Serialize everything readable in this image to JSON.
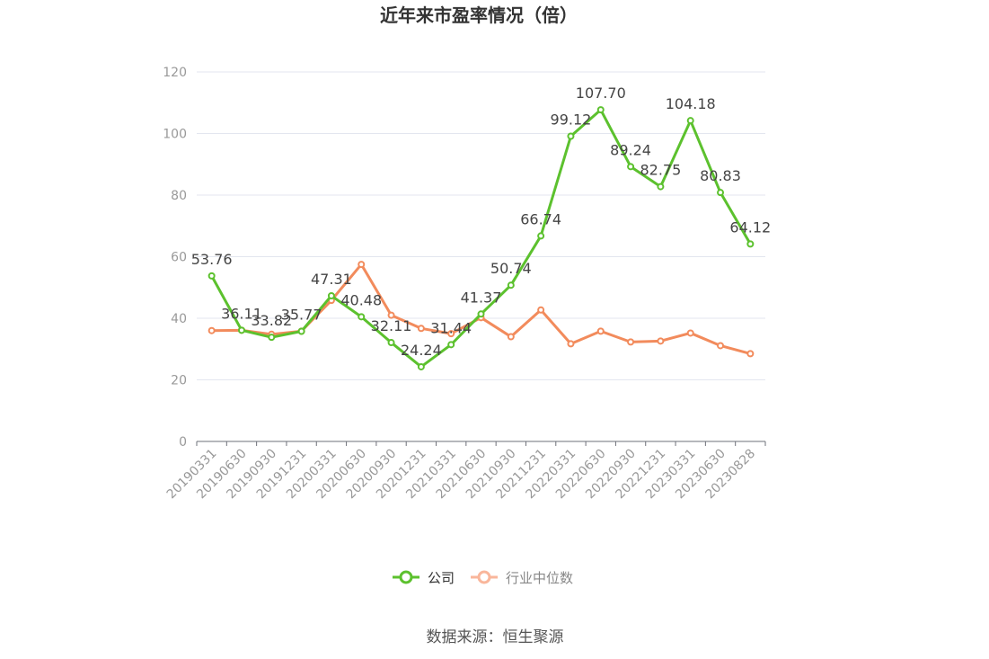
{
  "chart_data": {
    "type": "line",
    "title": "近年来市盈率情况（倍）",
    "categories": [
      "20190331",
      "20190630",
      "20190930",
      "20191231",
      "20200331",
      "20200630",
      "20200930",
      "20201231",
      "20210331",
      "20210630",
      "20210930",
      "20211231",
      "20220331",
      "20220630",
      "20220930",
      "20221231",
      "20230331",
      "20230630",
      "20230828"
    ],
    "series": [
      {
        "name": "公司",
        "color": "#5cc12e",
        "values": [
          53.76,
          36.11,
          33.82,
          35.77,
          47.31,
          40.48,
          32.11,
          24.24,
          31.44,
          41.37,
          50.74,
          66.74,
          99.12,
          107.7,
          89.24,
          82.75,
          104.18,
          80.83,
          64.12
        ],
        "labels": [
          "53.76",
          "36.11",
          "33.82",
          "35.77",
          "47.31",
          "40.48",
          "32.11",
          "24.24",
          "31.44",
          "41.37",
          "50.74",
          "66.74",
          "99.12",
          "107.70",
          "89.24",
          "82.75",
          "104.18",
          "80.83",
          "64.12"
        ]
      },
      {
        "name": "行业中位数",
        "color": "#f28b5c",
        "values": [
          36.0,
          36.1,
          34.8,
          35.8,
          45.8,
          57.5,
          41.0,
          36.7,
          35.0,
          40.2,
          34.0,
          42.7,
          31.7,
          35.8,
          32.3,
          32.6,
          35.2,
          31.1,
          28.5
        ]
      }
    ],
    "ylim": [
      0,
      120
    ],
    "yticks": [
      "0",
      "20",
      "40",
      "60",
      "80",
      "100",
      "120"
    ],
    "ytick_values": [
      0,
      20,
      40,
      60,
      80,
      100,
      120
    ],
    "xlabel": "",
    "ylabel": "",
    "grid": true,
    "legend_position": "bottom-center"
  },
  "source": "数据来源：恒生聚源"
}
